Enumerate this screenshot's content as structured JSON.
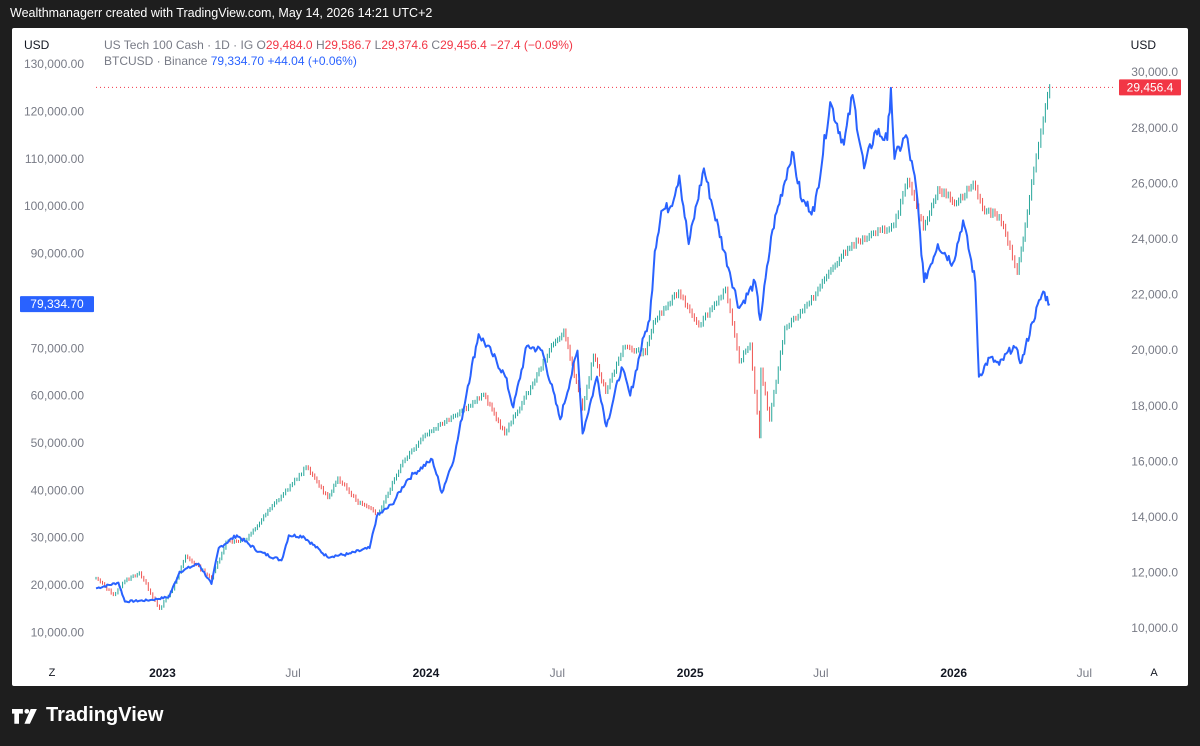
{
  "header": {
    "credit": "Wealthmanagerr created with TradingView.com, May 14, 2026 14:21 UTC+2"
  },
  "brand": {
    "name": "TradingView"
  },
  "axes": {
    "left_currency": "USD",
    "right_currency": "USD",
    "left_corner_label": "Z",
    "right_corner_label": "A"
  },
  "legend": {
    "nasdaq": {
      "name": "US Tech 100 Cash · 1D · IG",
      "o_label": "O",
      "o": "29,484.0",
      "h_label": "H",
      "h": "29,586.7",
      "l_label": "L",
      "l": "29,374.6",
      "c_label": "C",
      "c": "29,456.4",
      "change": "−27.4 (−0.09%)"
    },
    "btc": {
      "name": "BTCUSD · Binance",
      "last": "79,334.70",
      "change": "+44.04 (+0.06%)"
    }
  },
  "colors": {
    "btc": "#2962ff",
    "nasdaq_up": "#26a69a",
    "nasdaq_down": "#ef5350",
    "badge_red": "#f23645",
    "badge_blue": "#2962ff"
  },
  "chart_data": {
    "type": "line",
    "x_range": [
      "2022-10-01",
      "2026-07-31"
    ],
    "left_axis": {
      "unit": "USD",
      "series": "BTCUSD",
      "range": [
        5000,
        133000
      ],
      "ticks": [
        10000,
        20000,
        30000,
        40000,
        50000,
        60000,
        70000,
        90000,
        100000,
        110000,
        120000,
        130000
      ],
      "tick_labels": [
        "10,000.00",
        "20,000.00",
        "30,000.00",
        "40,000.00",
        "50,000.00",
        "60,000.00",
        "70,000.00",
        "90,000.00",
        "100,000.00",
        "110,000.00",
        "120,000.00",
        "130,000.00"
      ]
    },
    "right_axis": {
      "unit": "USD",
      "series": "US Tech 100 Cash",
      "range": [
        9000,
        30800
      ],
      "ticks": [
        10000,
        12000,
        14000,
        16000,
        18000,
        20000,
        22000,
        24000,
        26000,
        28000,
        30000
      ],
      "tick_labels": [
        "10,000.0",
        "12,000.0",
        "14,000.0",
        "16,000.0",
        "18,000.0",
        "20,000.0",
        "22,000.0",
        "24,000.0",
        "26,000.0",
        "28,000.0",
        "30,000.0"
      ]
    },
    "x_ticks": [
      {
        "date": "2023-01-01",
        "label": "2023",
        "bold": true
      },
      {
        "date": "2023-07-01",
        "label": "Jul",
        "bold": false
      },
      {
        "date": "2024-01-01",
        "label": "2024",
        "bold": true
      },
      {
        "date": "2024-07-01",
        "label": "Jul",
        "bold": false
      },
      {
        "date": "2025-01-01",
        "label": "2025",
        "bold": true
      },
      {
        "date": "2025-07-01",
        "label": "Jul",
        "bold": false
      },
      {
        "date": "2026-01-01",
        "label": "2026",
        "bold": true
      },
      {
        "date": "2026-07-01",
        "label": "Jul",
        "bold": false
      }
    ],
    "price_badges": [
      {
        "series": "BTCUSD",
        "axis": "left",
        "value": 79334.7,
        "label": "79,334.70"
      },
      {
        "series": "US Tech 100 Cash",
        "axis": "right",
        "value": 29456.4,
        "label": "29,456.4"
      }
    ],
    "series": [
      {
        "name": "BTCUSD",
        "axis": "left",
        "points": [
          [
            "2022-10-01",
            19300
          ],
          [
            "2022-11-01",
            20500
          ],
          [
            "2022-11-10",
            16500
          ],
          [
            "2022-12-15",
            16800
          ],
          [
            "2023-01-10",
            17500
          ],
          [
            "2023-01-25",
            22800
          ],
          [
            "2023-02-20",
            24500
          ],
          [
            "2023-03-10",
            20200
          ],
          [
            "2023-03-20",
            27800
          ],
          [
            "2023-04-14",
            30500
          ],
          [
            "2023-05-15",
            27000
          ],
          [
            "2023-06-15",
            25200
          ],
          [
            "2023-06-25",
            30500
          ],
          [
            "2023-07-15",
            30300
          ],
          [
            "2023-08-17",
            26000
          ],
          [
            "2023-09-15",
            26500
          ],
          [
            "2023-10-15",
            27800
          ],
          [
            "2023-10-25",
            34500
          ],
          [
            "2023-11-15",
            37000
          ],
          [
            "2023-12-05",
            42000
          ],
          [
            "2023-12-15",
            43500
          ],
          [
            "2024-01-10",
            46500
          ],
          [
            "2024-01-23",
            39500
          ],
          [
            "2024-02-10",
            47500
          ],
          [
            "2024-02-28",
            62000
          ],
          [
            "2024-03-14",
            73000
          ],
          [
            "2024-04-01",
            69000
          ],
          [
            "2024-04-20",
            64000
          ],
          [
            "2024-05-01",
            57500
          ],
          [
            "2024-05-20",
            70500
          ],
          [
            "2024-06-10",
            69500
          ],
          [
            "2024-07-05",
            55000
          ],
          [
            "2024-07-29",
            69500
          ],
          [
            "2024-08-05",
            52000
          ],
          [
            "2024-08-25",
            64000
          ],
          [
            "2024-09-07",
            53500
          ],
          [
            "2024-09-28",
            66000
          ],
          [
            "2024-10-10",
            60000
          ],
          [
            "2024-10-29",
            72500
          ],
          [
            "2024-11-06",
            76000
          ],
          [
            "2024-11-13",
            90500
          ],
          [
            "2024-11-22",
            99000
          ],
          [
            "2024-12-05",
            100000
          ],
          [
            "2024-12-17",
            106500
          ],
          [
            "2024-12-30",
            92000
          ],
          [
            "2025-01-20",
            108000
          ],
          [
            "2025-02-01",
            100000
          ],
          [
            "2025-02-25",
            86000
          ],
          [
            "2025-03-10",
            78500
          ],
          [
            "2025-04-01",
            84000
          ],
          [
            "2025-04-08",
            76000
          ],
          [
            "2025-04-25",
            95000
          ],
          [
            "2025-05-22",
            111500
          ],
          [
            "2025-06-05",
            101000
          ],
          [
            "2025-06-22",
            99000
          ],
          [
            "2025-07-14",
            122000
          ],
          [
            "2025-08-02",
            113000
          ],
          [
            "2025-08-14",
            123500
          ],
          [
            "2025-08-30",
            108000
          ],
          [
            "2025-09-15",
            116000
          ],
          [
            "2025-10-01",
            114000
          ],
          [
            "2025-10-06",
            125000
          ],
          [
            "2025-10-11",
            110000
          ],
          [
            "2025-10-27",
            115000
          ],
          [
            "2025-11-10",
            104000
          ],
          [
            "2025-11-21",
            84000
          ],
          [
            "2025-12-10",
            92000
          ],
          [
            "2025-12-31",
            88000
          ],
          [
            "2026-01-14",
            97000
          ],
          [
            "2026-01-31",
            84000
          ],
          [
            "2026-02-05",
            64000
          ],
          [
            "2026-02-20",
            68000
          ],
          [
            "2026-03-05",
            66500
          ],
          [
            "2026-03-25",
            70500
          ],
          [
            "2026-04-05",
            67000
          ],
          [
            "2026-04-20",
            75500
          ],
          [
            "2026-05-05",
            82000
          ],
          [
            "2026-05-14",
            79334.7
          ]
        ]
      },
      {
        "name": "US Tech 100 Cash",
        "axis": "right",
        "points": [
          [
            "2022-10-01",
            11800
          ],
          [
            "2022-10-25",
            11200
          ],
          [
            "2022-11-10",
            11700
          ],
          [
            "2022-11-30",
            12000
          ],
          [
            "2022-12-28",
            10700
          ],
          [
            "2023-01-15",
            11400
          ],
          [
            "2023-02-02",
            12600
          ],
          [
            "2023-03-10",
            11800
          ],
          [
            "2023-03-30",
            13100
          ],
          [
            "2023-04-28",
            13200
          ],
          [
            "2023-05-30",
            14300
          ],
          [
            "2023-06-30",
            15200
          ],
          [
            "2023-07-19",
            15800
          ],
          [
            "2023-08-18",
            14700
          ],
          [
            "2023-09-01",
            15400
          ],
          [
            "2023-09-26",
            14600
          ],
          [
            "2023-10-26",
            14100
          ],
          [
            "2023-11-30",
            16000
          ],
          [
            "2023-12-28",
            16900
          ],
          [
            "2024-01-30",
            17500
          ],
          [
            "2024-02-29",
            18000
          ],
          [
            "2024-03-21",
            18400
          ],
          [
            "2024-04-19",
            17000
          ],
          [
            "2024-05-28",
            18800
          ],
          [
            "2024-06-20",
            20000
          ],
          [
            "2024-07-10",
            20700
          ],
          [
            "2024-08-05",
            17900
          ],
          [
            "2024-08-20",
            19800
          ],
          [
            "2024-09-06",
            18500
          ],
          [
            "2024-09-30",
            20100
          ],
          [
            "2024-10-31",
            19900
          ],
          [
            "2024-11-11",
            21000
          ],
          [
            "2024-12-16",
            22100
          ],
          [
            "2025-01-13",
            20900
          ],
          [
            "2025-02-19",
            22200
          ],
          [
            "2025-03-10",
            19600
          ],
          [
            "2025-03-25",
            20200
          ],
          [
            "2025-04-07",
            16900
          ],
          [
            "2025-04-09",
            19300
          ],
          [
            "2025-04-21",
            17500
          ],
          [
            "2025-05-12",
            20800
          ],
          [
            "2025-06-15",
            21700
          ],
          [
            "2025-07-15",
            22900
          ],
          [
            "2025-08-13",
            23800
          ],
          [
            "2025-09-15",
            24200
          ],
          [
            "2025-10-10",
            24500
          ],
          [
            "2025-10-29",
            26100
          ],
          [
            "2025-11-20",
            24400
          ],
          [
            "2025-12-10",
            25800
          ],
          [
            "2026-01-05",
            25300
          ],
          [
            "2026-01-28",
            26000
          ],
          [
            "2026-02-10",
            25100
          ],
          [
            "2026-03-05",
            24800
          ],
          [
            "2026-03-20",
            23700
          ],
          [
            "2026-03-30",
            22800
          ],
          [
            "2026-04-10",
            24500
          ],
          [
            "2026-04-22",
            26500
          ],
          [
            "2026-05-05",
            28300
          ],
          [
            "2026-05-14",
            29456.4
          ]
        ]
      }
    ]
  }
}
